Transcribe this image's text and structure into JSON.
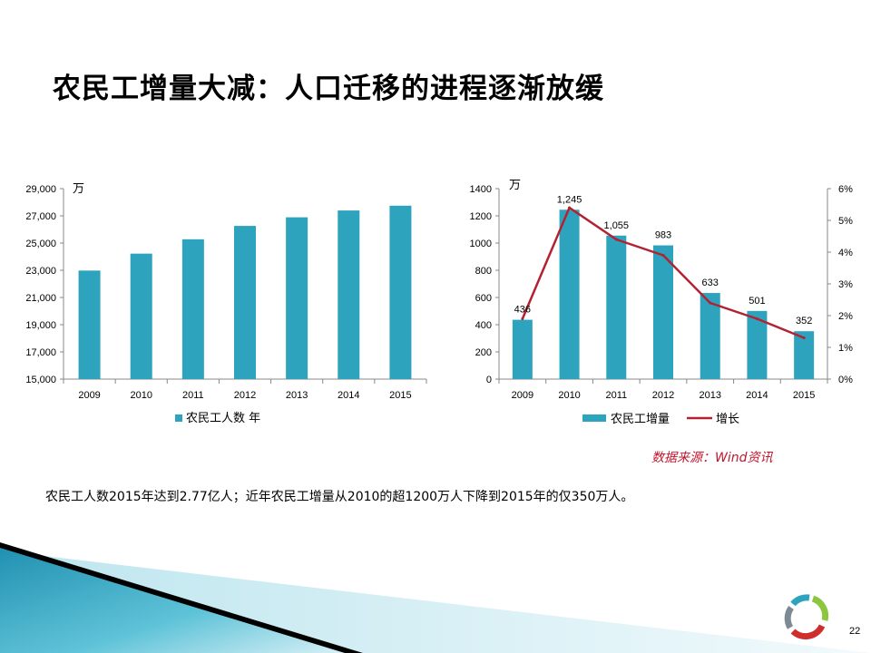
{
  "slide": {
    "title": "农民工增量大减：人口迁移的进程逐渐放缓",
    "caption": "农民工人数2015年达到2.77亿人；近年农民工增量从2010的超1200万人下降到2015年的仅350万人。",
    "source": "数据来源：Wind资讯",
    "page_number": "22"
  },
  "colors": {
    "bar": "#2ea3bd",
    "line": "#b22230",
    "source": "#c0172c"
  },
  "chart_data": [
    {
      "type": "bar",
      "unit_label": "万",
      "categories": [
        "2009",
        "2010",
        "2011",
        "2012",
        "2013",
        "2014",
        "2015"
      ],
      "series": [
        {
          "name": "农民工人数  年",
          "values": [
            22978,
            24223,
            25278,
            26261,
            26894,
            27395,
            27747
          ]
        }
      ],
      "ylim": [
        15000,
        29000
      ],
      "yticks": [
        "15,000",
        "17,000",
        "19,000",
        "21,000",
        "23,000",
        "25,000",
        "27,000",
        "29,000"
      ],
      "ytick_values": [
        15000,
        17000,
        19000,
        21000,
        23000,
        25000,
        27000,
        29000
      ],
      "legend_position": "bottom"
    },
    {
      "type": "bar",
      "unit_label": "万",
      "categories": [
        "2009",
        "2010",
        "2011",
        "2012",
        "2013",
        "2014",
        "2015"
      ],
      "series": [
        {
          "name": "农民工增量",
          "type": "bar",
          "values": [
            436,
            1245,
            1055,
            983,
            633,
            501,
            352
          ],
          "labels": [
            "436",
            "1,245",
            "1,055",
            "983",
            "633",
            "501",
            "352"
          ]
        },
        {
          "name": "增长",
          "type": "line",
          "axis": "right",
          "values": [
            1.9,
            5.4,
            4.4,
            3.9,
            2.4,
            1.9,
            1.3
          ]
        }
      ],
      "ylim": [
        0,
        1400
      ],
      "yticks": [
        "0",
        "200",
        "400",
        "600",
        "800",
        "1000",
        "1200",
        "1400"
      ],
      "ytick_values": [
        0,
        200,
        400,
        600,
        800,
        1000,
        1200,
        1400
      ],
      "y2lim": [
        0,
        6
      ],
      "y2ticks": [
        "0%",
        "1%",
        "2%",
        "3%",
        "4%",
        "5%",
        "6%"
      ],
      "y2tick_values": [
        0,
        1,
        2,
        3,
        4,
        5,
        6
      ],
      "legend_position": "bottom"
    }
  ]
}
